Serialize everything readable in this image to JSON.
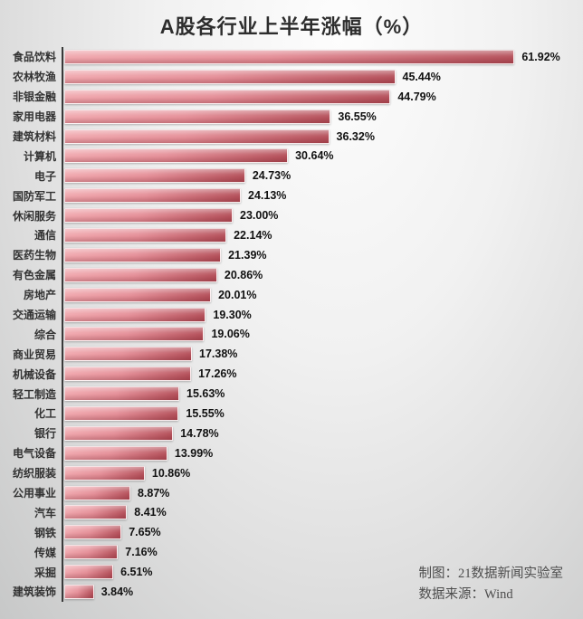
{
  "title": "A股各行业上半年涨幅（%）",
  "footer": {
    "credit": "制图：21数据新闻实验室",
    "source": "数据来源：Wind"
  },
  "colors": {
    "bar_gradient_left": "#f0a8ae",
    "bar_gradient_right": "#b5515b",
    "axis_line": "#3a3a3a",
    "category_text": "#333333",
    "value_text": "#111111",
    "title_text": "#2d2d2d"
  },
  "chart_data": {
    "type": "bar",
    "orientation": "horizontal",
    "title": "A股各行业上半年涨幅（%）",
    "unit": "%",
    "xlim": [
      0,
      70
    ],
    "grid": false,
    "legend": false,
    "categories": [
      "食品饮料",
      "农林牧渔",
      "非银金融",
      "家用电器",
      "建筑材料",
      "计算机",
      "电子",
      "国防军工",
      "休闲服务",
      "通信",
      "医药生物",
      "有色金属",
      "房地产",
      "交通运输",
      "综合",
      "商业贸易",
      "机械设备",
      "轻工制造",
      "化工",
      "银行",
      "电气设备",
      "纺织服装",
      "公用事业",
      "汽车",
      "钢铁",
      "传媒",
      "采掘",
      "建筑装饰"
    ],
    "values": [
      61.92,
      45.44,
      44.79,
      36.55,
      36.32,
      30.64,
      24.73,
      24.13,
      23.0,
      22.14,
      21.39,
      20.86,
      20.01,
      19.3,
      19.06,
      17.38,
      17.26,
      15.63,
      15.55,
      14.78,
      13.99,
      10.86,
      8.87,
      8.41,
      7.65,
      7.16,
      6.51,
      3.84
    ],
    "value_labels": [
      "61.92%",
      "45.44%",
      "44.79%",
      "36.55%",
      "36.32%",
      "30.64%",
      "24.73%",
      "24.13%",
      "23.00%",
      "22.14%",
      "21.39%",
      "20.86%",
      "20.01%",
      "19.30%",
      "19.06%",
      "17.38%",
      "17.26%",
      "15.63%",
      "15.55%",
      "14.78%",
      "13.99%",
      "10.86%",
      "8.87%",
      "8.41%",
      "7.65%",
      "7.16%",
      "6.51%",
      "3.84%"
    ]
  }
}
